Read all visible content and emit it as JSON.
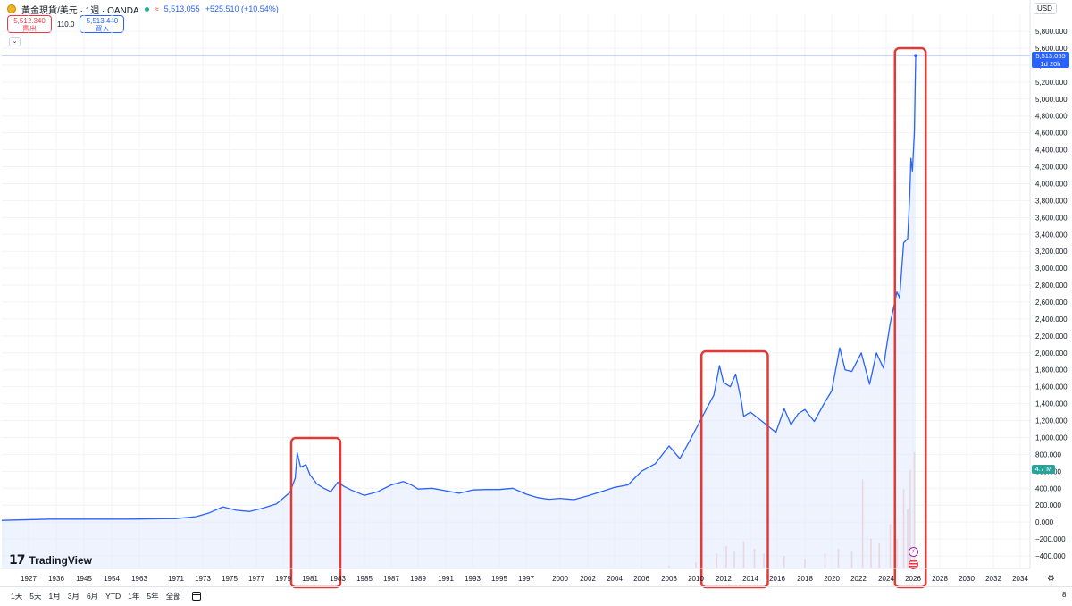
{
  "header": {
    "symbol_title": "黃金現貨/美元 · 1週 · OANDA",
    "approx_symbol": "≈",
    "last_price": "5,513.055",
    "change": "+525.510 (+10.54%)",
    "sell_price": "5,512.340",
    "sell_label": "賣出",
    "spread": "110.0",
    "buy_price": "5,513.440",
    "buy_label": "買入",
    "collapse_icon": "chevron-down-icon"
  },
  "axis": {
    "currency": "USD",
    "price_tag_value": "5,513.055",
    "price_tag_countdown": "1d 20h",
    "volume_tag": "4.7 M"
  },
  "branding": {
    "logo_text": "TradingView",
    "logo_icon": "tradingview-logo-icon"
  },
  "bottom_bar": {
    "ranges": [
      "1天",
      "5天",
      "1月",
      "3月",
      "6月",
      "YTD",
      "1年",
      "5年",
      "全部"
    ],
    "calendar_icon": "calendar-icon",
    "settings_icon": "gear-icon",
    "edge_digit": "8"
  },
  "colors": {
    "line": "#2962ff",
    "area_fill": "#e3ebfd",
    "highlight_box": "#e53935",
    "volume": "#f2b6b0",
    "price_tag": "#2962ff",
    "volume_tag": "#26a69a"
  },
  "chart_data": {
    "type": "area",
    "title": "",
    "xlabel": "",
    "ylabel": "",
    "ylim": [
      -400,
      5800
    ],
    "xlim": [
      1922,
      2037
    ],
    "log_scale": false,
    "grid": true,
    "legend": "none",
    "y_ticks": [
      5800,
      5600,
      5400,
      5200,
      5000,
      4800,
      4600,
      4400,
      4200,
      4000,
      3800,
      3600,
      3400,
      3200,
      3000,
      2800,
      2600,
      2400,
      2200,
      2000,
      1800,
      1600,
      1400,
      1200,
      1000,
      800,
      600,
      400,
      200,
      0,
      -200,
      -400
    ],
    "y_tick_labels": [
      "5,800.000",
      "5,600.000",
      "5,400.000",
      "5,200.000",
      "5,000.000",
      "4,800.000",
      "4,600.000",
      "4,400.000",
      "4,200.000",
      "4,000.000",
      "3,800.000",
      "3,600.000",
      "3,400.000",
      "3,200.000",
      "3,000.000",
      "2,800.000",
      "2,600.000",
      "2,400.000",
      "2,200.000",
      "2,000.000",
      "1,800.000",
      "1,600.000",
      "1,400.000",
      "1,200.000",
      "1,000.000",
      "800.000",
      "600.000",
      "400.000",
      "200.000",
      "0.000",
      "−200.000",
      "−400.000"
    ],
    "x_ticks": [
      "1927",
      "1936",
      "1945",
      "1954",
      "1963",
      "1971",
      "1973",
      "1975",
      "1977",
      "1979",
      "1981",
      "1983",
      "1985",
      "1987",
      "1989",
      "1991",
      "1993",
      "1995",
      "1997",
      "2000",
      "2002",
      "2004",
      "2006",
      "2008",
      "2010",
      "2012",
      "2014",
      "2016",
      "2018",
      "2020",
      "2022",
      "2024",
      "2026",
      "2028",
      "2030",
      "2032",
      "2034"
    ],
    "series": [
      {
        "values": [
          [
            1922,
            20
          ],
          [
            1934,
            35
          ],
          [
            1945,
            35
          ],
          [
            1960,
            35
          ],
          [
            1968,
            40
          ],
          [
            1971,
            42
          ],
          [
            1972.5,
            65
          ],
          [
            1973.5,
            110
          ],
          [
            1974.5,
            180
          ],
          [
            1975.5,
            140
          ],
          [
            1976.5,
            125
          ],
          [
            1977.5,
            165
          ],
          [
            1978.5,
            215
          ],
          [
            1979.5,
            350
          ],
          [
            1979.9,
            520
          ],
          [
            1980.05,
            820
          ],
          [
            1980.3,
            650
          ],
          [
            1980.7,
            680
          ],
          [
            1981,
            560
          ],
          [
            1981.5,
            450
          ],
          [
            1982,
            400
          ],
          [
            1982.5,
            360
          ],
          [
            1983,
            470
          ],
          [
            1983.5,
            420
          ],
          [
            1984,
            380
          ],
          [
            1985,
            315
          ],
          [
            1986,
            360
          ],
          [
            1987,
            440
          ],
          [
            1987.9,
            480
          ],
          [
            1988.5,
            440
          ],
          [
            1989,
            390
          ],
          [
            1990,
            400
          ],
          [
            1991,
            370
          ],
          [
            1992,
            340
          ],
          [
            1993,
            380
          ],
          [
            1994,
            385
          ],
          [
            1995,
            385
          ],
          [
            1996,
            400
          ],
          [
            1997,
            330
          ],
          [
            1998,
            290
          ],
          [
            1999,
            270
          ],
          [
            2000,
            280
          ],
          [
            2001,
            265
          ],
          [
            2002,
            310
          ],
          [
            2003,
            360
          ],
          [
            2004,
            410
          ],
          [
            2005,
            440
          ],
          [
            2006,
            600
          ],
          [
            2007,
            690
          ],
          [
            2008,
            900
          ],
          [
            2008.8,
            750
          ],
          [
            2009.5,
            950
          ],
          [
            2010,
            1100
          ],
          [
            2010.8,
            1350
          ],
          [
            2011.3,
            1500
          ],
          [
            2011.7,
            1850
          ],
          [
            2012,
            1650
          ],
          [
            2012.5,
            1600
          ],
          [
            2012.9,
            1750
          ],
          [
            2013.3,
            1450
          ],
          [
            2013.5,
            1250
          ],
          [
            2014,
            1300
          ],
          [
            2014.8,
            1200
          ],
          [
            2015.9,
            1060
          ],
          [
            2016.5,
            1340
          ],
          [
            2017,
            1150
          ],
          [
            2017.5,
            1280
          ],
          [
            2018,
            1330
          ],
          [
            2018.7,
            1190
          ],
          [
            2019.5,
            1420
          ],
          [
            2020,
            1550
          ],
          [
            2020.6,
            2060
          ],
          [
            2021,
            1800
          ],
          [
            2021.5,
            1780
          ],
          [
            2022.2,
            2000
          ],
          [
            2022.8,
            1630
          ],
          [
            2023.3,
            2000
          ],
          [
            2023.8,
            1820
          ],
          [
            2024,
            2050
          ],
          [
            2024.3,
            2350
          ],
          [
            2024.8,
            2720
          ],
          [
            2025,
            2650
          ],
          [
            2025.3,
            3300
          ],
          [
            2025.6,
            3350
          ],
          [
            2025.75,
            3850
          ],
          [
            2025.85,
            4300
          ],
          [
            2025.95,
            4150
          ],
          [
            2026.1,
            4600
          ],
          [
            2026.2,
            5513
          ]
        ]
      }
    ],
    "volume_series": {
      "name": "",
      "unit": "M",
      "values": [
        [
          2006,
          0.05
        ],
        [
          2008,
          0.1
        ],
        [
          2010,
          0.25
        ],
        [
          2011.5,
          0.6
        ],
        [
          2012.2,
          0.9
        ],
        [
          2012.8,
          0.7
        ],
        [
          2013.5,
          1.1
        ],
        [
          2014.3,
          0.8
        ],
        [
          2015,
          0.6
        ],
        [
          2016.5,
          0.5
        ],
        [
          2018,
          0.4
        ],
        [
          2019.5,
          0.6
        ],
        [
          2020.5,
          0.8
        ],
        [
          2021.5,
          0.7
        ],
        [
          2022.3,
          3.6
        ],
        [
          2022.9,
          1.2
        ],
        [
          2023.5,
          1.0
        ],
        [
          2024.3,
          1.8
        ],
        [
          2024.8,
          1.2
        ],
        [
          2025.3,
          3.2
        ],
        [
          2025.6,
          2.4
        ],
        [
          2025.8,
          4.0
        ],
        [
          2026.1,
          4.7
        ]
      ]
    },
    "highlighted_ranges": [
      [
        1979.6,
        1983.2
      ],
      [
        2010.4,
        2015.3
      ],
      [
        2024.65,
        2026.95
      ]
    ]
  }
}
